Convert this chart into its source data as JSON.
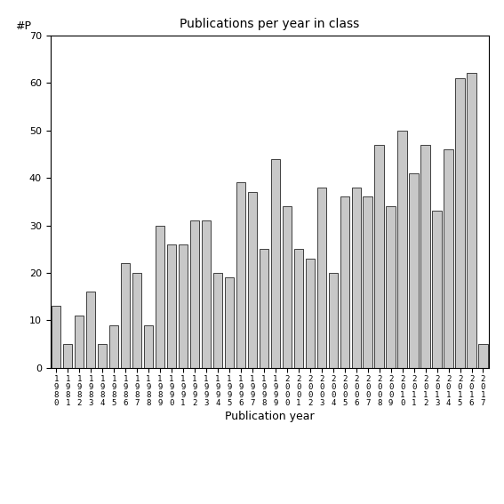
{
  "title": "Publications per year in class",
  "xlabel": "Publication year",
  "ylabel": "#P",
  "bar_color": "#c8c8c8",
  "bar_edge_color": "#000000",
  "years": [
    1980,
    1981,
    1982,
    1983,
    1984,
    1985,
    1986,
    1987,
    1988,
    1989,
    1990,
    1991,
    1992,
    1993,
    1994,
    1995,
    1996,
    1997,
    1998,
    1999,
    2000,
    2001,
    2002,
    2003,
    2004,
    2005,
    2006,
    2007,
    2008,
    2009,
    2010,
    2011,
    2012,
    2013,
    2014,
    2015,
    2016,
    2017
  ],
  "values": [
    13,
    5,
    11,
    16,
    5,
    9,
    22,
    20,
    9,
    30,
    26,
    26,
    31,
    31,
    20,
    19,
    39,
    37,
    25,
    44,
    34,
    25,
    23,
    38,
    20,
    36,
    38,
    36,
    47,
    34,
    50,
    41,
    47,
    33,
    46,
    61,
    62,
    5
  ],
  "ylim": [
    0,
    70
  ],
  "yticks": [
    0,
    10,
    20,
    30,
    40,
    50,
    60,
    70
  ],
  "figsize": [
    5.67,
    5.67
  ],
  "dpi": 100
}
